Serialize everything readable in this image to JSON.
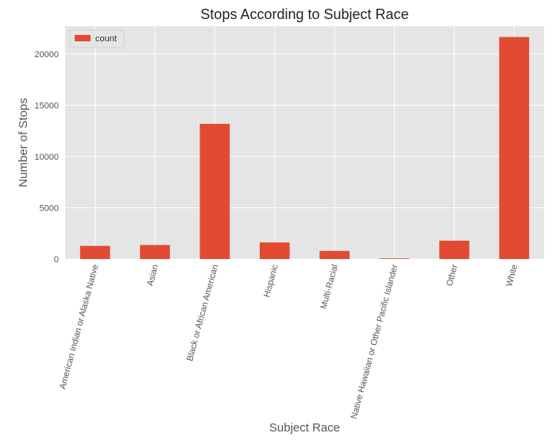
{
  "chart_data": {
    "type": "bar",
    "title": "Stops According to Subject Race",
    "xlabel": "Subject Race",
    "ylabel": "Number of Stops",
    "categories": [
      "American Indian or Alaska Native",
      "Asian",
      "Black or African American",
      "Hispanic",
      "Multi-Racial",
      "Native Hawaiian or Other Pacific Islander",
      "Other",
      "White"
    ],
    "series": [
      {
        "name": "count",
        "color": "#E24A33",
        "values": [
          1280,
          1370,
          13180,
          1620,
          790,
          60,
          1790,
          21650
        ]
      }
    ],
    "ylim": [
      0,
      22700
    ],
    "yticks": [
      0,
      5000,
      10000,
      15000,
      20000
    ],
    "grid": true,
    "legend_position": "top-left",
    "colors": {
      "plot_background": "#E5E5E5",
      "grid": "#FFFFFF",
      "text": "#555555"
    }
  }
}
